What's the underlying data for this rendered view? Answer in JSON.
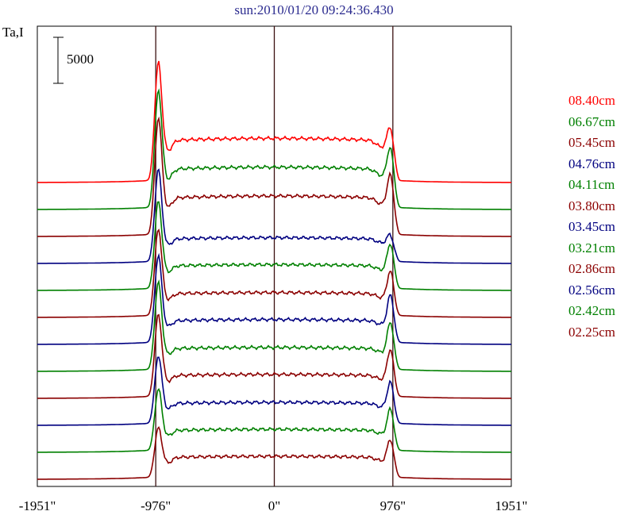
{
  "title": "sun:2010/01/20 09:24:36.430",
  "y_axis_label": "Ta,I",
  "scale_bar_label": "5000",
  "chart_data": {
    "type": "line",
    "title": "sun:2010/01/20 09:24:36.430",
    "ylabel": "Ta,I",
    "x_ticks": [
      {
        "value": -1951,
        "label": "-1951\""
      },
      {
        "value": -976,
        "label": "-976\""
      },
      {
        "value": 0,
        "label": "0\""
      },
      {
        "value": 976,
        "label": "976\""
      },
      {
        "value": 1951,
        "label": "1951\""
      }
    ],
    "xlim": [
      -1951,
      1951
    ],
    "vertical_lines": [
      -976,
      0,
      976
    ],
    "scale_bar": 5000,
    "legend_placement": "right",
    "series": [
      {
        "name": "08.40cm",
        "color": "#ff0000",
        "peak_left": 11000,
        "peak_right": 5000,
        "plateau": 4800
      },
      {
        "name": "06.67cm",
        "color": "#008000",
        "peak_left": 11000,
        "peak_right": 5800,
        "plateau": 4600
      },
      {
        "name": "05.45cm",
        "color": "#8b0000",
        "peak_left": 11000,
        "peak_right": 5800,
        "plateau": 4400
      },
      {
        "name": "04.76cm",
        "color": "#000080",
        "peak_left": 9000,
        "peak_right": 2500,
        "plateau": 2800
      },
      {
        "name": "04.11cm",
        "color": "#008000",
        "peak_left": 8500,
        "peak_right": 4500,
        "plateau": 2800
      },
      {
        "name": "03.80cm",
        "color": "#8b0000",
        "peak_left": 8500,
        "peak_right": 4500,
        "plateau": 2700
      },
      {
        "name": "03.45cm",
        "color": "#000080",
        "peak_left": 8500,
        "peak_right": 4800,
        "plateau": 2700
      },
      {
        "name": "03.21cm",
        "color": "#008000",
        "peak_left": 8500,
        "peak_right": 4800,
        "plateau": 2600
      },
      {
        "name": "02.86cm",
        "color": "#8b0000",
        "peak_left": 8000,
        "peak_right": 4800,
        "plateau": 2600
      },
      {
        "name": "02.56cm",
        "color": "#000080",
        "peak_left": 6500,
        "peak_right": 4200,
        "plateau": 2500
      },
      {
        "name": "02.42cm",
        "color": "#008000",
        "peak_left": 5800,
        "peak_right": 4200,
        "plateau": 2500
      },
      {
        "name": "02.25cm",
        "color": "#8b0000",
        "peak_left": 4500,
        "peak_right": 3800,
        "plateau": 2500
      }
    ]
  }
}
